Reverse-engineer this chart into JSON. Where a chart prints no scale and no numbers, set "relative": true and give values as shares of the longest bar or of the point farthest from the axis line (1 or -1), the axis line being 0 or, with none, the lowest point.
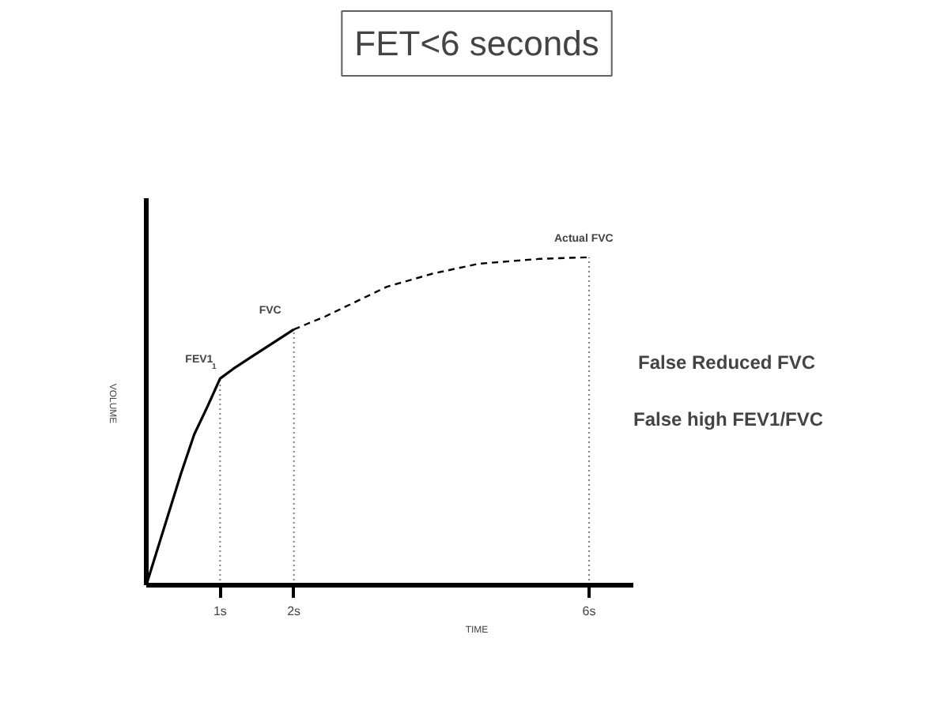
{
  "chart_data": {
    "type": "line",
    "title": "FET<6 seconds",
    "xlabel": "TIME",
    "ylabel": "VOLUME",
    "relative": true,
    "tick_labels": "x",
    "grid": false,
    "xlim": [
      0,
      6.6
    ],
    "xticks": [
      {
        "value": 1,
        "label": "1s"
      },
      {
        "value": 2,
        "label": "2s"
      },
      {
        "value": 6,
        "label": "6s"
      }
    ],
    "series": [
      {
        "color": "#000000",
        "line_style": "solid",
        "x": [
          0,
          0.47,
          0.65,
          0.84,
          1,
          1.18,
          1.45,
          2
        ],
        "values": [
          0,
          0.34,
          0.46,
          0.55,
          0.63,
          0.66,
          0.7,
          0.78
        ]
      },
      {
        "color": "#000000",
        "line_style": "dashed",
        "x": [
          2,
          2.43,
          3.26,
          3.88,
          4.5,
          5.32,
          6
        ],
        "values": [
          0.78,
          0.82,
          0.91,
          0.95,
          0.98,
          0.995,
          1
        ]
      }
    ],
    "ref_lines": [
      {
        "axis": "x",
        "value": 1,
        "line_style": "dotted",
        "color": "#808080"
      },
      {
        "axis": "x",
        "value": 2,
        "line_style": "dotted",
        "color": "#808080"
      },
      {
        "axis": "x",
        "value": 6,
        "line_style": "dotted",
        "color": "#808080"
      }
    ],
    "annotations": [
      {
        "text": "FEV1$_{1}$",
        "x": 1,
        "y": 0.63
      },
      {
        "text": "FVC",
        "x": 2,
        "y": 0.78
      },
      {
        "text": "Actual FVC",
        "x": 6,
        "y": 1
      },
      "False Reduced FVC",
      "False high FEV1/FVC"
    ]
  }
}
